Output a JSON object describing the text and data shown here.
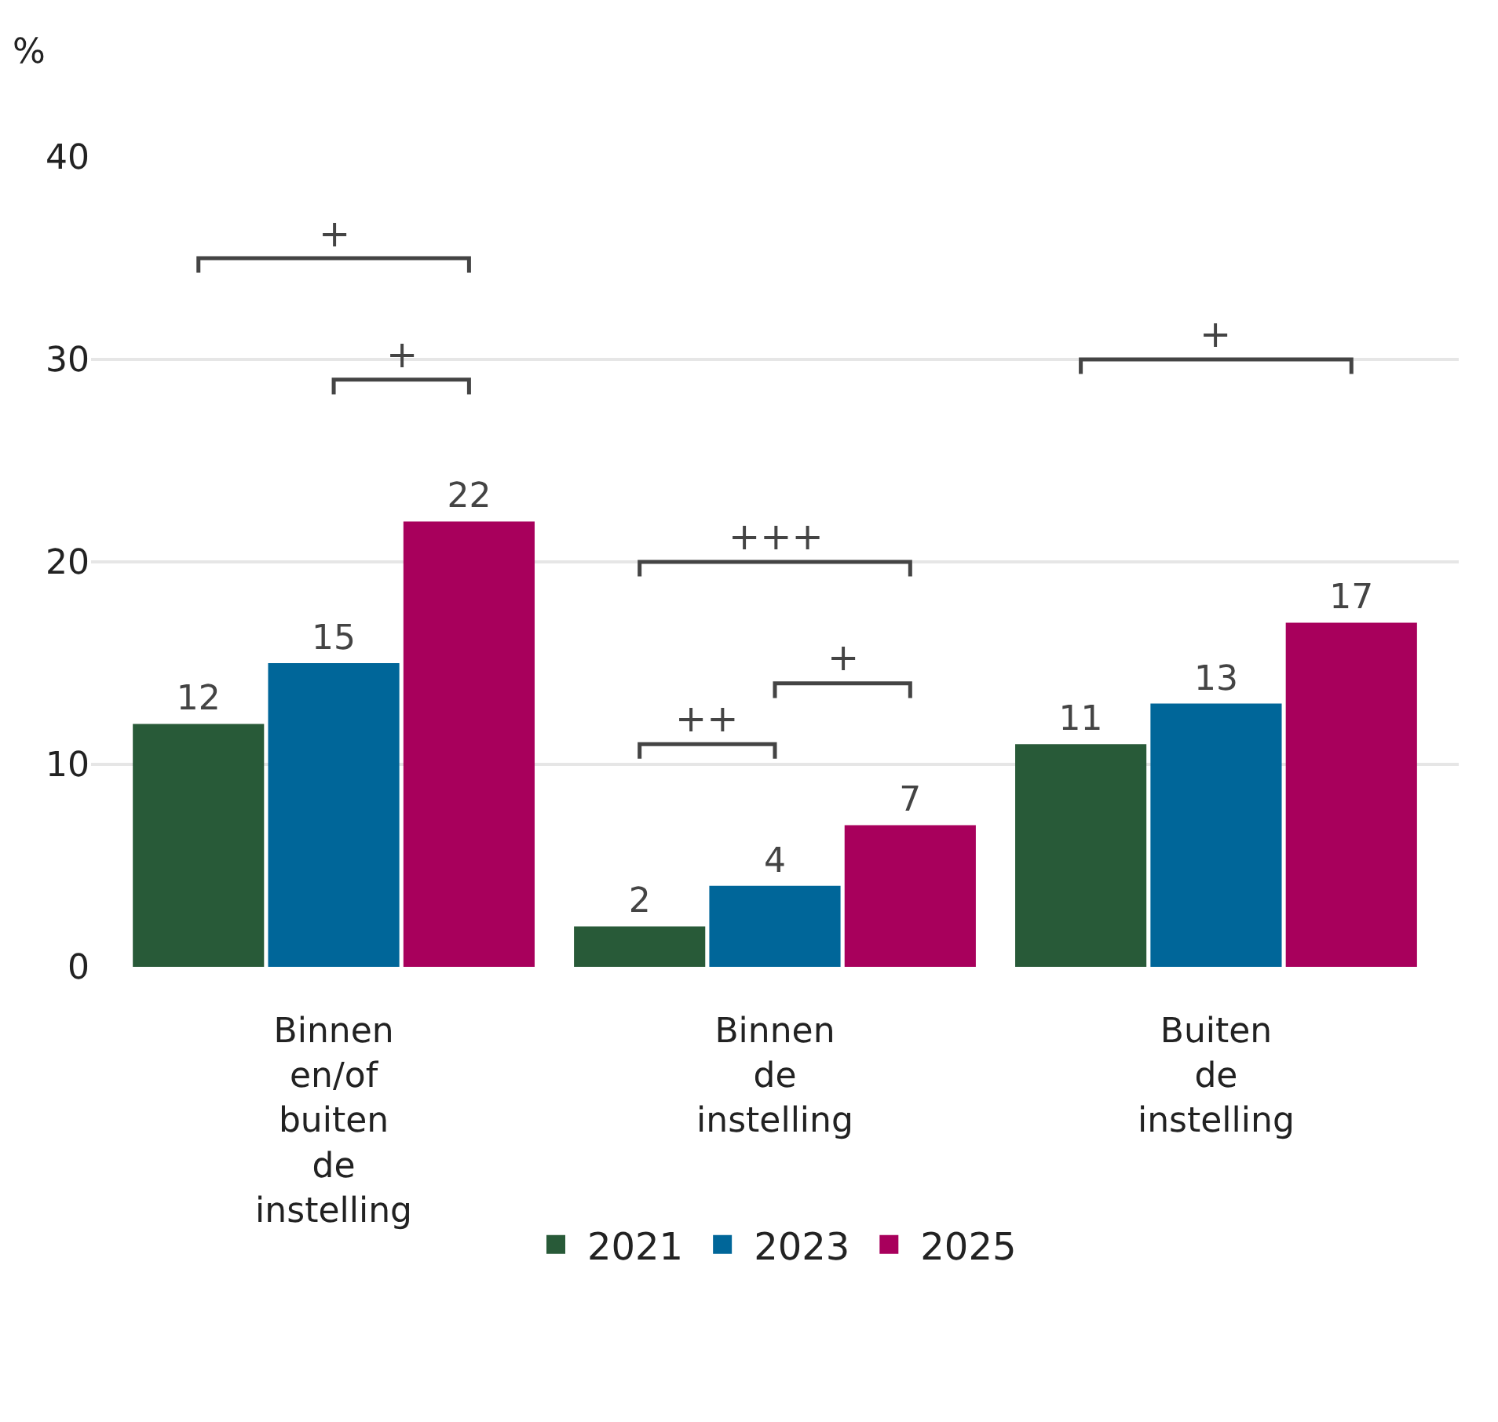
{
  "chart_data": {
    "type": "bar",
    "ylabel": "%",
    "categories": [
      "Binnen en/of buiten de instelling",
      "Binnen de instelling",
      "Buiten de instelling"
    ],
    "series": [
      {
        "name": "2021",
        "color": "#285a38",
        "values": [
          12,
          2,
          11
        ]
      },
      {
        "name": "2023",
        "color": "#006699",
        "values": [
          15,
          4,
          13
        ]
      },
      {
        "name": "2025",
        "color": "#a8005c",
        "values": [
          22,
          7,
          17
        ]
      }
    ],
    "ylim": [
      0,
      40
    ],
    "yticks": [
      0,
      10,
      20,
      30,
      40
    ],
    "grid": "y",
    "legend": "bottom",
    "data_labels": true,
    "annotations": [
      "+",
      "+",
      "+++",
      "++",
      "+",
      "+"
    ]
  }
}
